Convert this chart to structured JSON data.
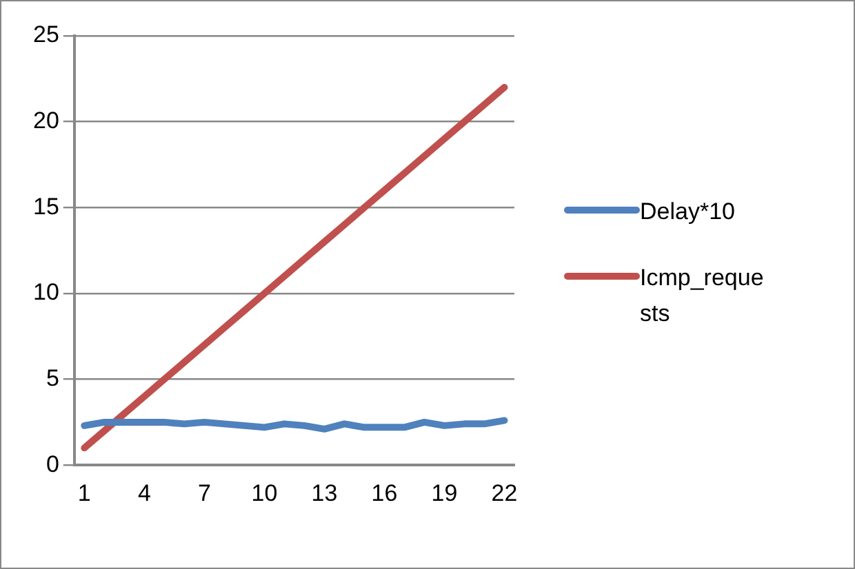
{
  "chart_data": {
    "type": "line",
    "categories": [
      "1",
      null,
      null,
      "4",
      null,
      null,
      "7",
      null,
      null,
      "10",
      null,
      null,
      "13",
      null,
      null,
      "16",
      null,
      null,
      "19",
      null,
      null,
      "22"
    ],
    "series": [
      {
        "name": "Delay*10",
        "color": "#4f81bd",
        "values": [
          2.3,
          2.5,
          2.5,
          2.5,
          2.5,
          2.4,
          2.5,
          2.4,
          2.3,
          2.2,
          2.4,
          2.3,
          2.1,
          2.4,
          2.2,
          2.2,
          2.2,
          2.5,
          2.3,
          2.4,
          2.4,
          2.6
        ]
      },
      {
        "name": "Icmp_requests",
        "color": "#c0504d",
        "values": [
          1,
          2,
          3,
          4,
          5,
          6,
          7,
          8,
          9,
          10,
          11,
          12,
          13,
          14,
          15,
          16,
          17,
          18,
          19,
          20,
          21,
          22
        ]
      }
    ],
    "ylim": [
      0,
      25
    ],
    "yticks": [
      0,
      5,
      10,
      15,
      20,
      25
    ],
    "grid": "y",
    "legend": "right",
    "marker": "none",
    "line_style": "solid"
  }
}
